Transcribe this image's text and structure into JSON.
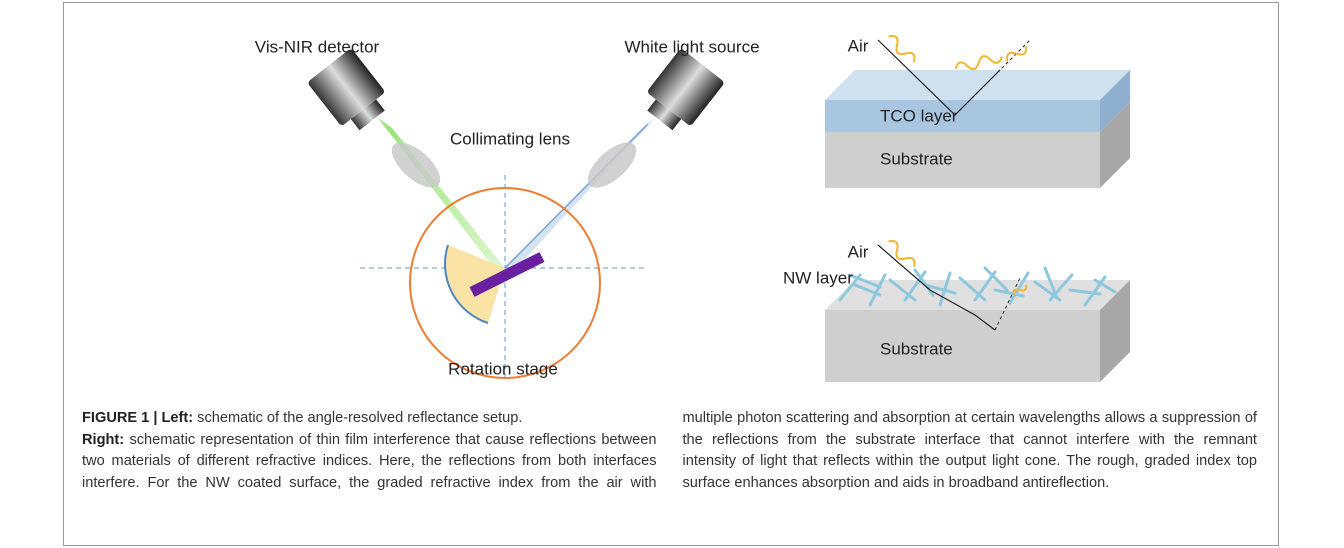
{
  "figure": {
    "left_labels": {
      "detector": "Vis-NIR detector",
      "source": "White light source",
      "lens": "Collimating lens",
      "stage": "Rotation stage"
    },
    "right_top": {
      "air": "Air",
      "layer": "TCO layer",
      "substrate": "Substrate"
    },
    "right_bottom": {
      "air": "Air",
      "layer": "NW layer",
      "substrate": "Substrate"
    }
  },
  "caption": {
    "label": "FIGURE 1 | Left:",
    "left_text": "schematic of the angle-resolved reflectance setup.",
    "right_label": "Right:",
    "right_text": "schematic representation of thin film interference that cause reflections between two materials of different refractive indices. Here, the reflections from both interfaces interfere. For the NW coated surface, the graded refractive index from the air with multiple photon scattering and absorption at certain wavelengths allows a suppression of the reflections from the substrate interface that cannot interfere with the remnant intensity of light that reflects within the output light cone. The rough, graded index top surface enhances absorption and aids in broadband antireflection."
  }
}
